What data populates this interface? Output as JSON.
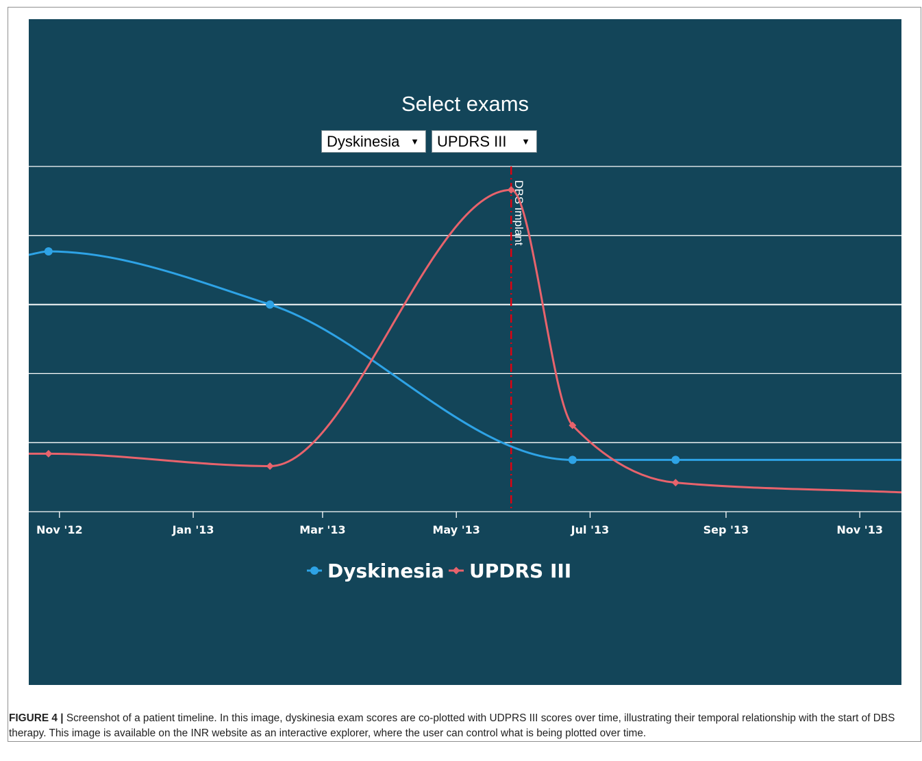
{
  "figure": {
    "panel_title": "Select exams",
    "selectors": [
      {
        "value": "Dyskinesia"
      },
      {
        "value": "UPDRS III"
      }
    ],
    "caption_label": "FIGURE 4 |",
    "caption_text": " Screenshot of a patient timeline. In this image, dyskinesia exam scores are co-plotted with UDPRS III scores over time, illustrating their temporal relationship with the start of DBS therapy. This image is available on the INR website as an interactive explorer, where the user can control what is being plotted over time.",
    "colors": {
      "background": "#134559",
      "dyskinesia": "#2EA3E6",
      "updrs": "#E8636C",
      "event_line": "#E3000F",
      "grid": "#FFFFFF"
    }
  },
  "chart_data": {
    "type": "line",
    "x_type": "date",
    "xlim": [
      "2012-10-18",
      "2013-11-20"
    ],
    "ylim": [
      0,
      5
    ],
    "ylabel": "",
    "xlabel": "",
    "grid": true,
    "x_ticks": [
      {
        "label": "Nov '12",
        "date": "2012-11-01"
      },
      {
        "label": "Jan '13",
        "date": "2013-01-01"
      },
      {
        "label": "Mar '13",
        "date": "2013-03-01"
      },
      {
        "label": "May '13",
        "date": "2013-05-01"
      },
      {
        "label": "Jul '13",
        "date": "2013-07-01"
      },
      {
        "label": "Sep '13",
        "date": "2013-09-01"
      },
      {
        "label": "Nov '13",
        "date": "2013-11-01"
      }
    ],
    "series": [
      {
        "name": "Dyskinesia",
        "marker": "circle",
        "color": "#2EA3E6",
        "points": [
          {
            "date": "2012-10-18",
            "y": 3.72
          },
          {
            "date": "2012-10-27",
            "y": 3.77
          },
          {
            "date": "2013-02-05",
            "y": 3.0
          },
          {
            "date": "2013-06-23",
            "y": 0.75
          },
          {
            "date": "2013-08-09",
            "y": 0.75
          },
          {
            "date": "2013-11-20",
            "y": 0.75
          }
        ],
        "markers": [
          1,
          2,
          3,
          4
        ]
      },
      {
        "name": "UPDRS III",
        "marker": "diamond",
        "color": "#E8636C",
        "points": [
          {
            "date": "2012-10-18",
            "y": 0.84
          },
          {
            "date": "2012-10-27",
            "y": 0.84
          },
          {
            "date": "2013-02-05",
            "y": 0.66
          },
          {
            "date": "2013-05-26",
            "y": 4.66
          },
          {
            "date": "2013-06-23",
            "y": 1.25
          },
          {
            "date": "2013-08-09",
            "y": 0.42
          },
          {
            "date": "2013-11-20",
            "y": 0.28
          }
        ],
        "markers": [
          1,
          2,
          3,
          4,
          5
        ]
      }
    ],
    "event": {
      "label": "DBS Implant",
      "date": "2013-05-26"
    },
    "legend": {
      "position": "bottom-center"
    }
  }
}
